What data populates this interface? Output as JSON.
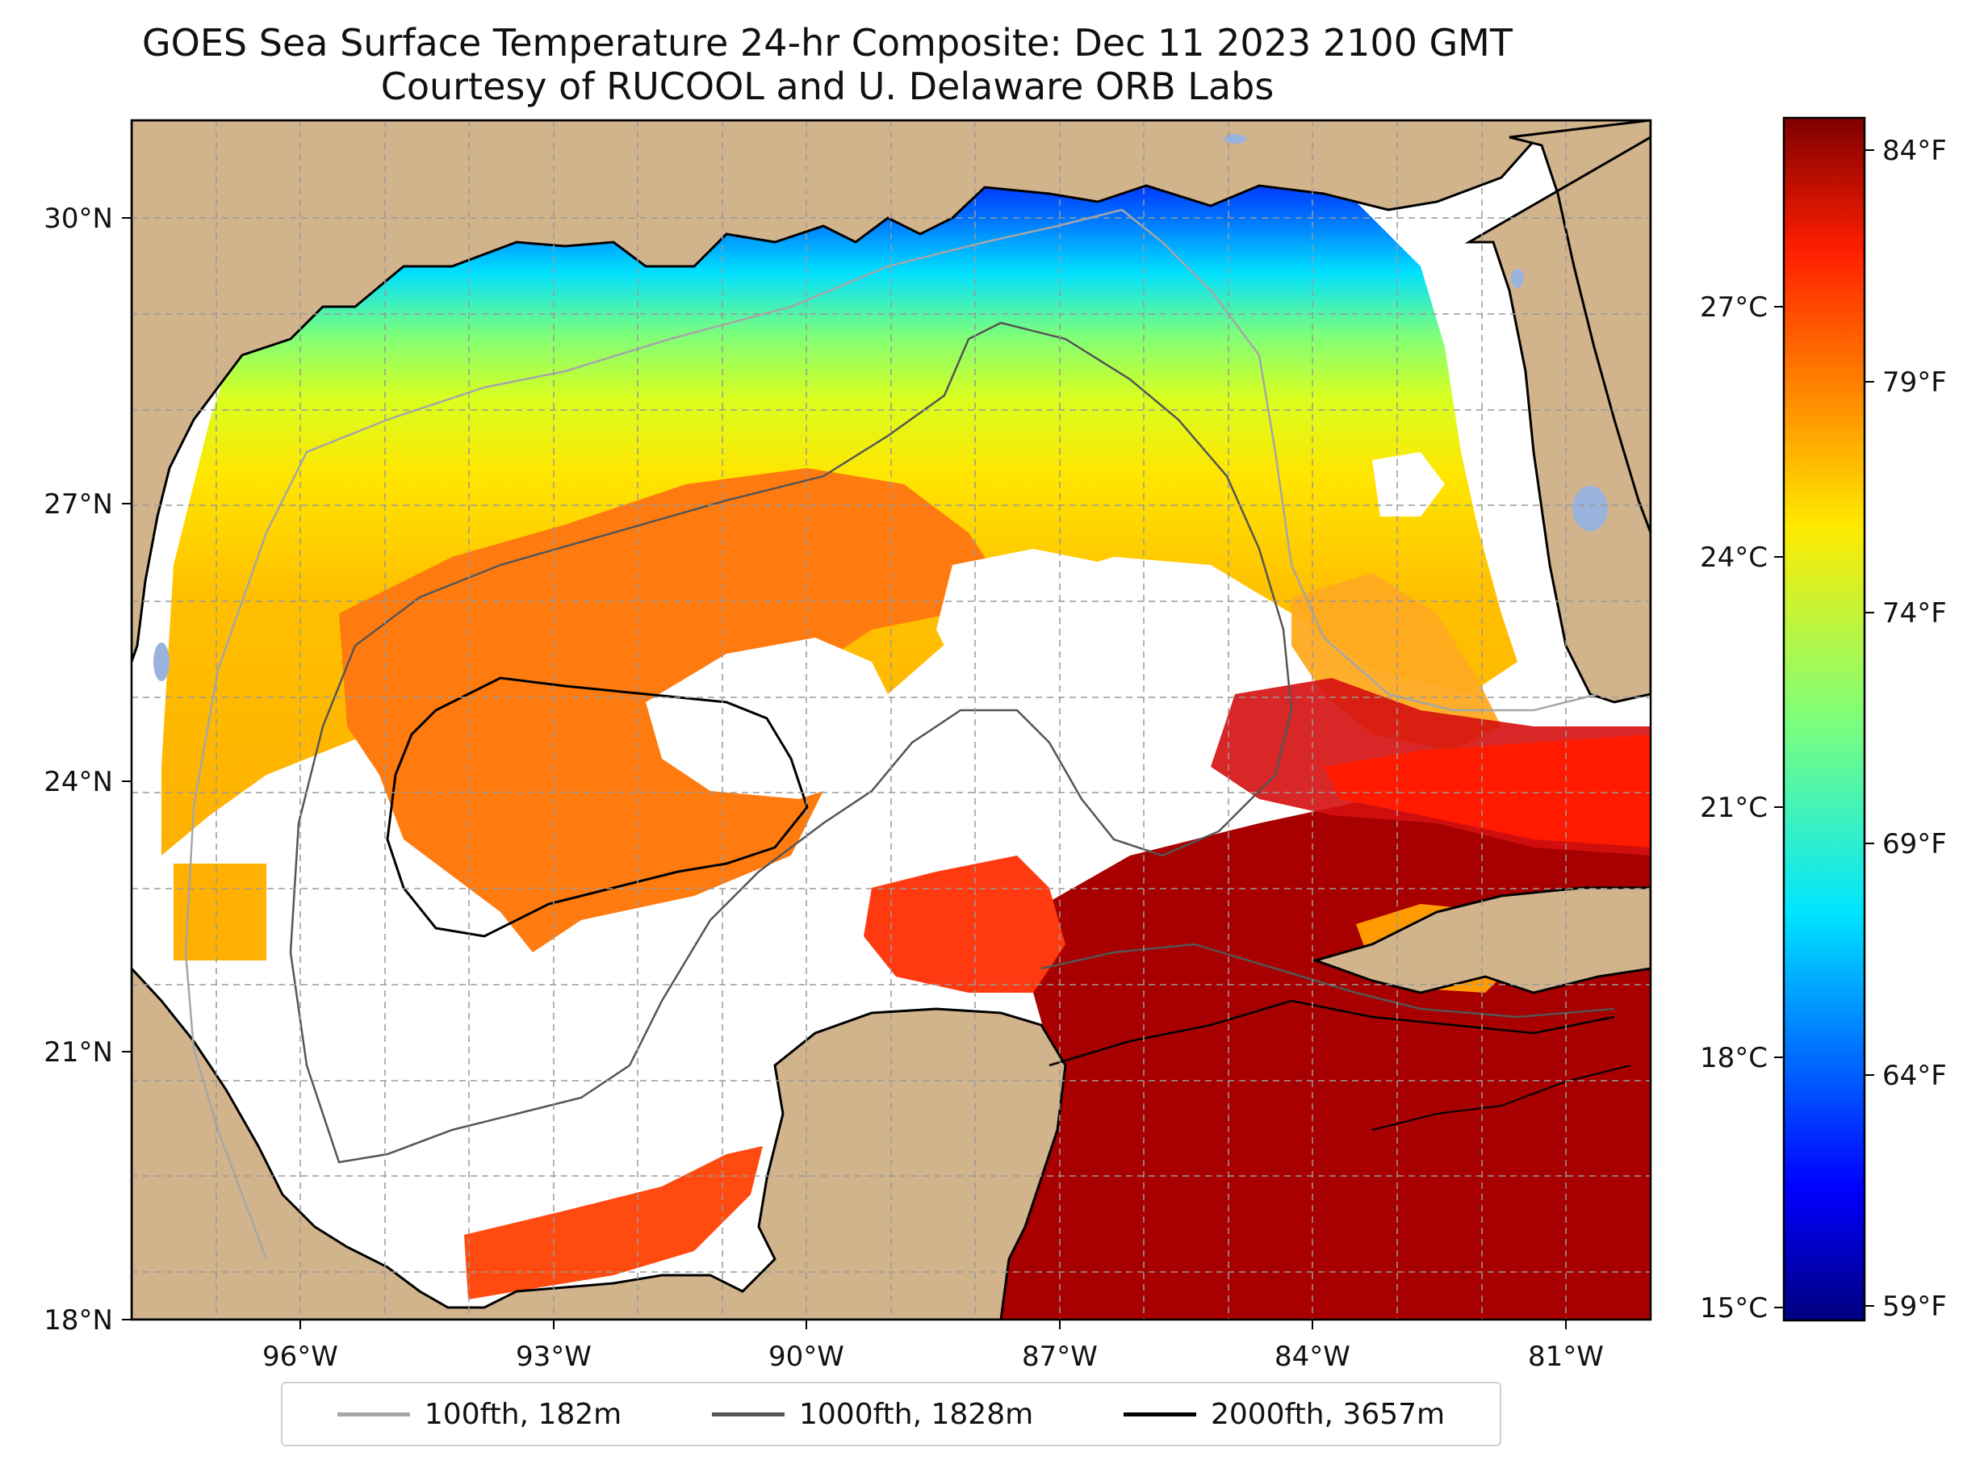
{
  "title": {
    "line1": "GOES Sea Surface Temperature 24-hr Composite: Dec 11 2023 2100 GMT",
    "line2": "Courtesy of RUCOOL and U. Delaware ORB Labs"
  },
  "map": {
    "region": "Gulf of Mexico",
    "lat_range": [
      18,
      31
    ],
    "lon_range": [
      -98,
      -80
    ],
    "lat_ticks": [
      "18°N",
      "21°N",
      "24°N",
      "27°N",
      "30°N"
    ],
    "lon_ticks": [
      "96°W",
      "93°W",
      "90°W",
      "87°W",
      "84°W",
      "81°W"
    ],
    "colors": {
      "land": "#d2b48c",
      "lake": "#9ab3dc",
      "no_data": "#ffffff",
      "coast": "#000000",
      "gridline": "#9a9a9a"
    }
  },
  "colorbar": {
    "colormap": "jet",
    "range_fahrenheit": [
      58.5,
      85
    ],
    "fahrenheit_labels": [
      "84°F",
      "79°F",
      "74°F",
      "69°F",
      "64°F",
      "59°F"
    ],
    "celsius_labels": [
      "27°C",
      "24°C",
      "21°C",
      "18°C",
      "15°C"
    ]
  },
  "legend": {
    "items": [
      {
        "label": "100fth, 182m",
        "color": "#a6a6a6"
      },
      {
        "label": "1000fth, 1828m",
        "color": "#555555"
      },
      {
        "label": "2000fth, 3657m",
        "color": "#000000"
      }
    ]
  }
}
